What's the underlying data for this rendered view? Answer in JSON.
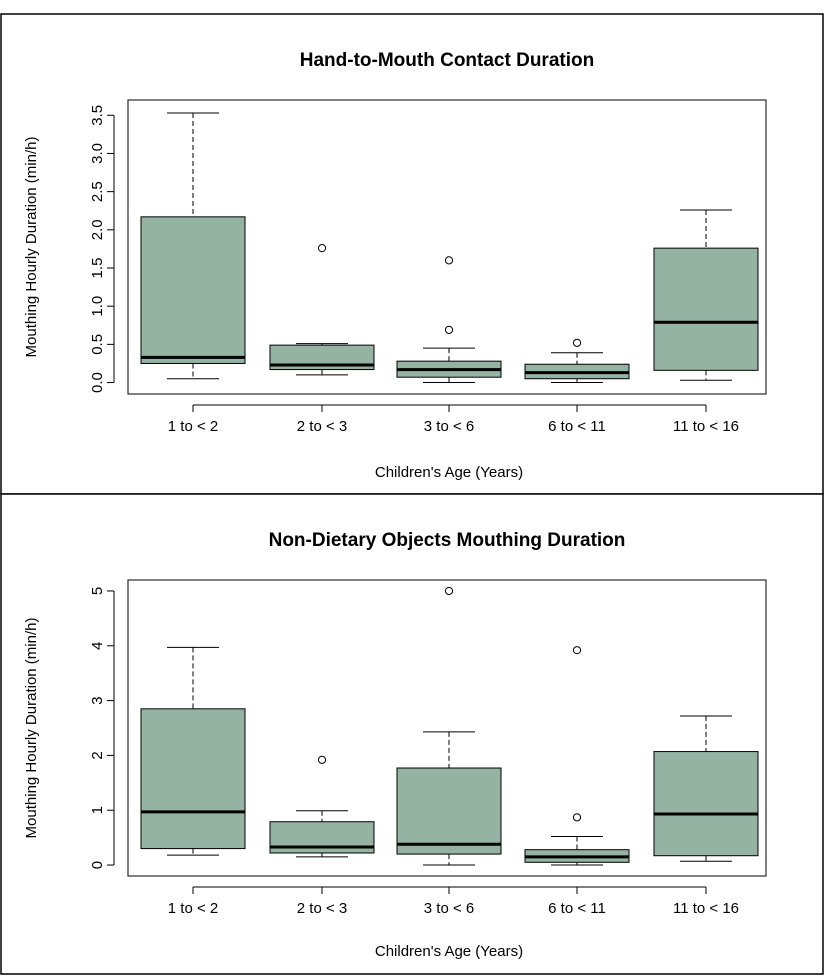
{
  "chart_data": [
    {
      "type": "box",
      "title": "Hand-to-Mouth Contact Duration",
      "xlabel": "Children's Age (Years)",
      "ylabel": "Mouthing Hourly Duration (min/h)",
      "ylim": [
        -0.15,
        3.7
      ],
      "yticks": [
        0,
        0.5,
        1,
        1.5,
        2,
        2.5,
        3,
        3.5
      ],
      "ytick_labels": [
        "0.0",
        "0.5",
        "1.0",
        "1.5",
        "2.0",
        "2.5",
        "3.0",
        "3.5"
      ],
      "box_color": "#94b3a3",
      "categories": [
        "1 to < 2",
        "2 to < 3",
        "3 to < 6",
        "6 to < 11",
        "11 to < 16"
      ],
      "boxes": [
        {
          "min": 0.05,
          "q1": 0.25,
          "median": 0.33,
          "q3": 2.17,
          "max": 3.53,
          "outliers": []
        },
        {
          "min": 0.1,
          "q1": 0.17,
          "median": 0.23,
          "q3": 0.49,
          "max": 0.51,
          "outliers": [
            1.76
          ]
        },
        {
          "min": 0.0,
          "q1": 0.07,
          "median": 0.17,
          "q3": 0.28,
          "max": 0.45,
          "outliers": [
            0.69,
            1.6
          ]
        },
        {
          "min": 0.0,
          "q1": 0.05,
          "median": 0.13,
          "q3": 0.24,
          "max": 0.39,
          "outliers": [
            0.52
          ]
        },
        {
          "min": 0.03,
          "q1": 0.16,
          "median": 0.79,
          "q3": 1.76,
          "max": 2.26,
          "outliers": []
        }
      ]
    },
    {
      "type": "box",
      "title": "Non-Dietary Objects Mouthing Duration",
      "xlabel": "Children's Age (Years)",
      "ylabel": "Mouthing Hourly Duration (min/h)",
      "ylim": [
        -0.2,
        5.2
      ],
      "yticks": [
        0,
        1,
        2,
        3,
        4,
        5
      ],
      "ytick_labels": [
        "0",
        "1",
        "2",
        "3",
        "4",
        "5"
      ],
      "box_color": "#94b3a3",
      "categories": [
        "1 to < 2",
        "2 to < 3",
        "3 to < 6",
        "6 to < 11",
        "11 to < 16"
      ],
      "boxes": [
        {
          "min": 0.18,
          "q1": 0.3,
          "median": 0.97,
          "q3": 2.85,
          "max": 3.97,
          "outliers": []
        },
        {
          "min": 0.15,
          "q1": 0.22,
          "median": 0.33,
          "q3": 0.79,
          "max": 0.99,
          "outliers": [
            1.92
          ]
        },
        {
          "min": 0.0,
          "q1": 0.2,
          "median": 0.38,
          "q3": 1.77,
          "max": 2.43,
          "outliers": [
            5.0
          ]
        },
        {
          "min": 0.0,
          "q1": 0.05,
          "median": 0.15,
          "q3": 0.28,
          "max": 0.52,
          "outliers": [
            0.87,
            3.92
          ]
        },
        {
          "min": 0.07,
          "q1": 0.17,
          "median": 0.93,
          "q3": 2.07,
          "max": 2.72,
          "outliers": []
        }
      ]
    }
  ]
}
